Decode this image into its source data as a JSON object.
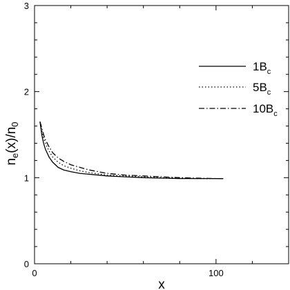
{
  "chart_data": {
    "type": "line",
    "title": "",
    "xlabel": "x",
    "ylabel": {
      "parts": [
        {
          "text": "n",
          "sub": false
        },
        {
          "text": "e",
          "sub": true
        },
        {
          "text": "(x)/n",
          "sub": false
        },
        {
          "text": "0",
          "sub": true
        }
      ]
    },
    "xlim": [
      0,
      140
    ],
    "ylim": [
      0,
      3
    ],
    "xticks": [
      {
        "value": 0,
        "label": "0"
      },
      {
        "value": 100,
        "label": "100"
      }
    ],
    "yticks": [
      {
        "value": 0,
        "label": "0"
      },
      {
        "value": 1,
        "label": "1"
      },
      {
        "value": 2,
        "label": "2"
      },
      {
        "value": 3,
        "label": "3"
      }
    ],
    "grid": false,
    "legend_position": "top-right",
    "series": [
      {
        "name": {
          "main": "1B",
          "sub": "c"
        },
        "style": "solid",
        "x": [
          3,
          4,
          5,
          6,
          8,
          10,
          13,
          16,
          20,
          25,
          30,
          40,
          50,
          60,
          70,
          80,
          90,
          100,
          104
        ],
        "y": [
          1.65,
          1.5,
          1.4,
          1.33,
          1.24,
          1.18,
          1.12,
          1.09,
          1.07,
          1.05,
          1.04,
          1.02,
          1.01,
          1.0,
          0.995,
          0.99,
          0.99,
          0.99,
          0.99
        ]
      },
      {
        "name": {
          "main": "5B",
          "sub": "c"
        },
        "style": "dotted",
        "x": [
          3,
          4,
          5,
          6,
          8,
          10,
          13,
          16,
          20,
          25,
          30,
          40,
          50,
          60,
          70,
          80,
          90,
          100,
          104
        ],
        "y": [
          1.65,
          1.55,
          1.46,
          1.4,
          1.31,
          1.24,
          1.18,
          1.14,
          1.11,
          1.08,
          1.06,
          1.03,
          1.02,
          1.01,
          1.0,
          0.995,
          0.99,
          0.99,
          0.99
        ]
      },
      {
        "name": {
          "main": "10B",
          "sub": "c"
        },
        "style": "dashdot",
        "x": [
          3,
          4,
          5,
          6,
          8,
          10,
          13,
          16,
          20,
          25,
          30,
          40,
          50,
          60,
          70,
          80,
          90,
          100,
          104
        ],
        "y": [
          1.65,
          1.58,
          1.5,
          1.44,
          1.36,
          1.29,
          1.23,
          1.19,
          1.15,
          1.12,
          1.09,
          1.05,
          1.03,
          1.02,
          1.01,
          1.0,
          0.995,
          0.99,
          0.99
        ]
      }
    ]
  }
}
